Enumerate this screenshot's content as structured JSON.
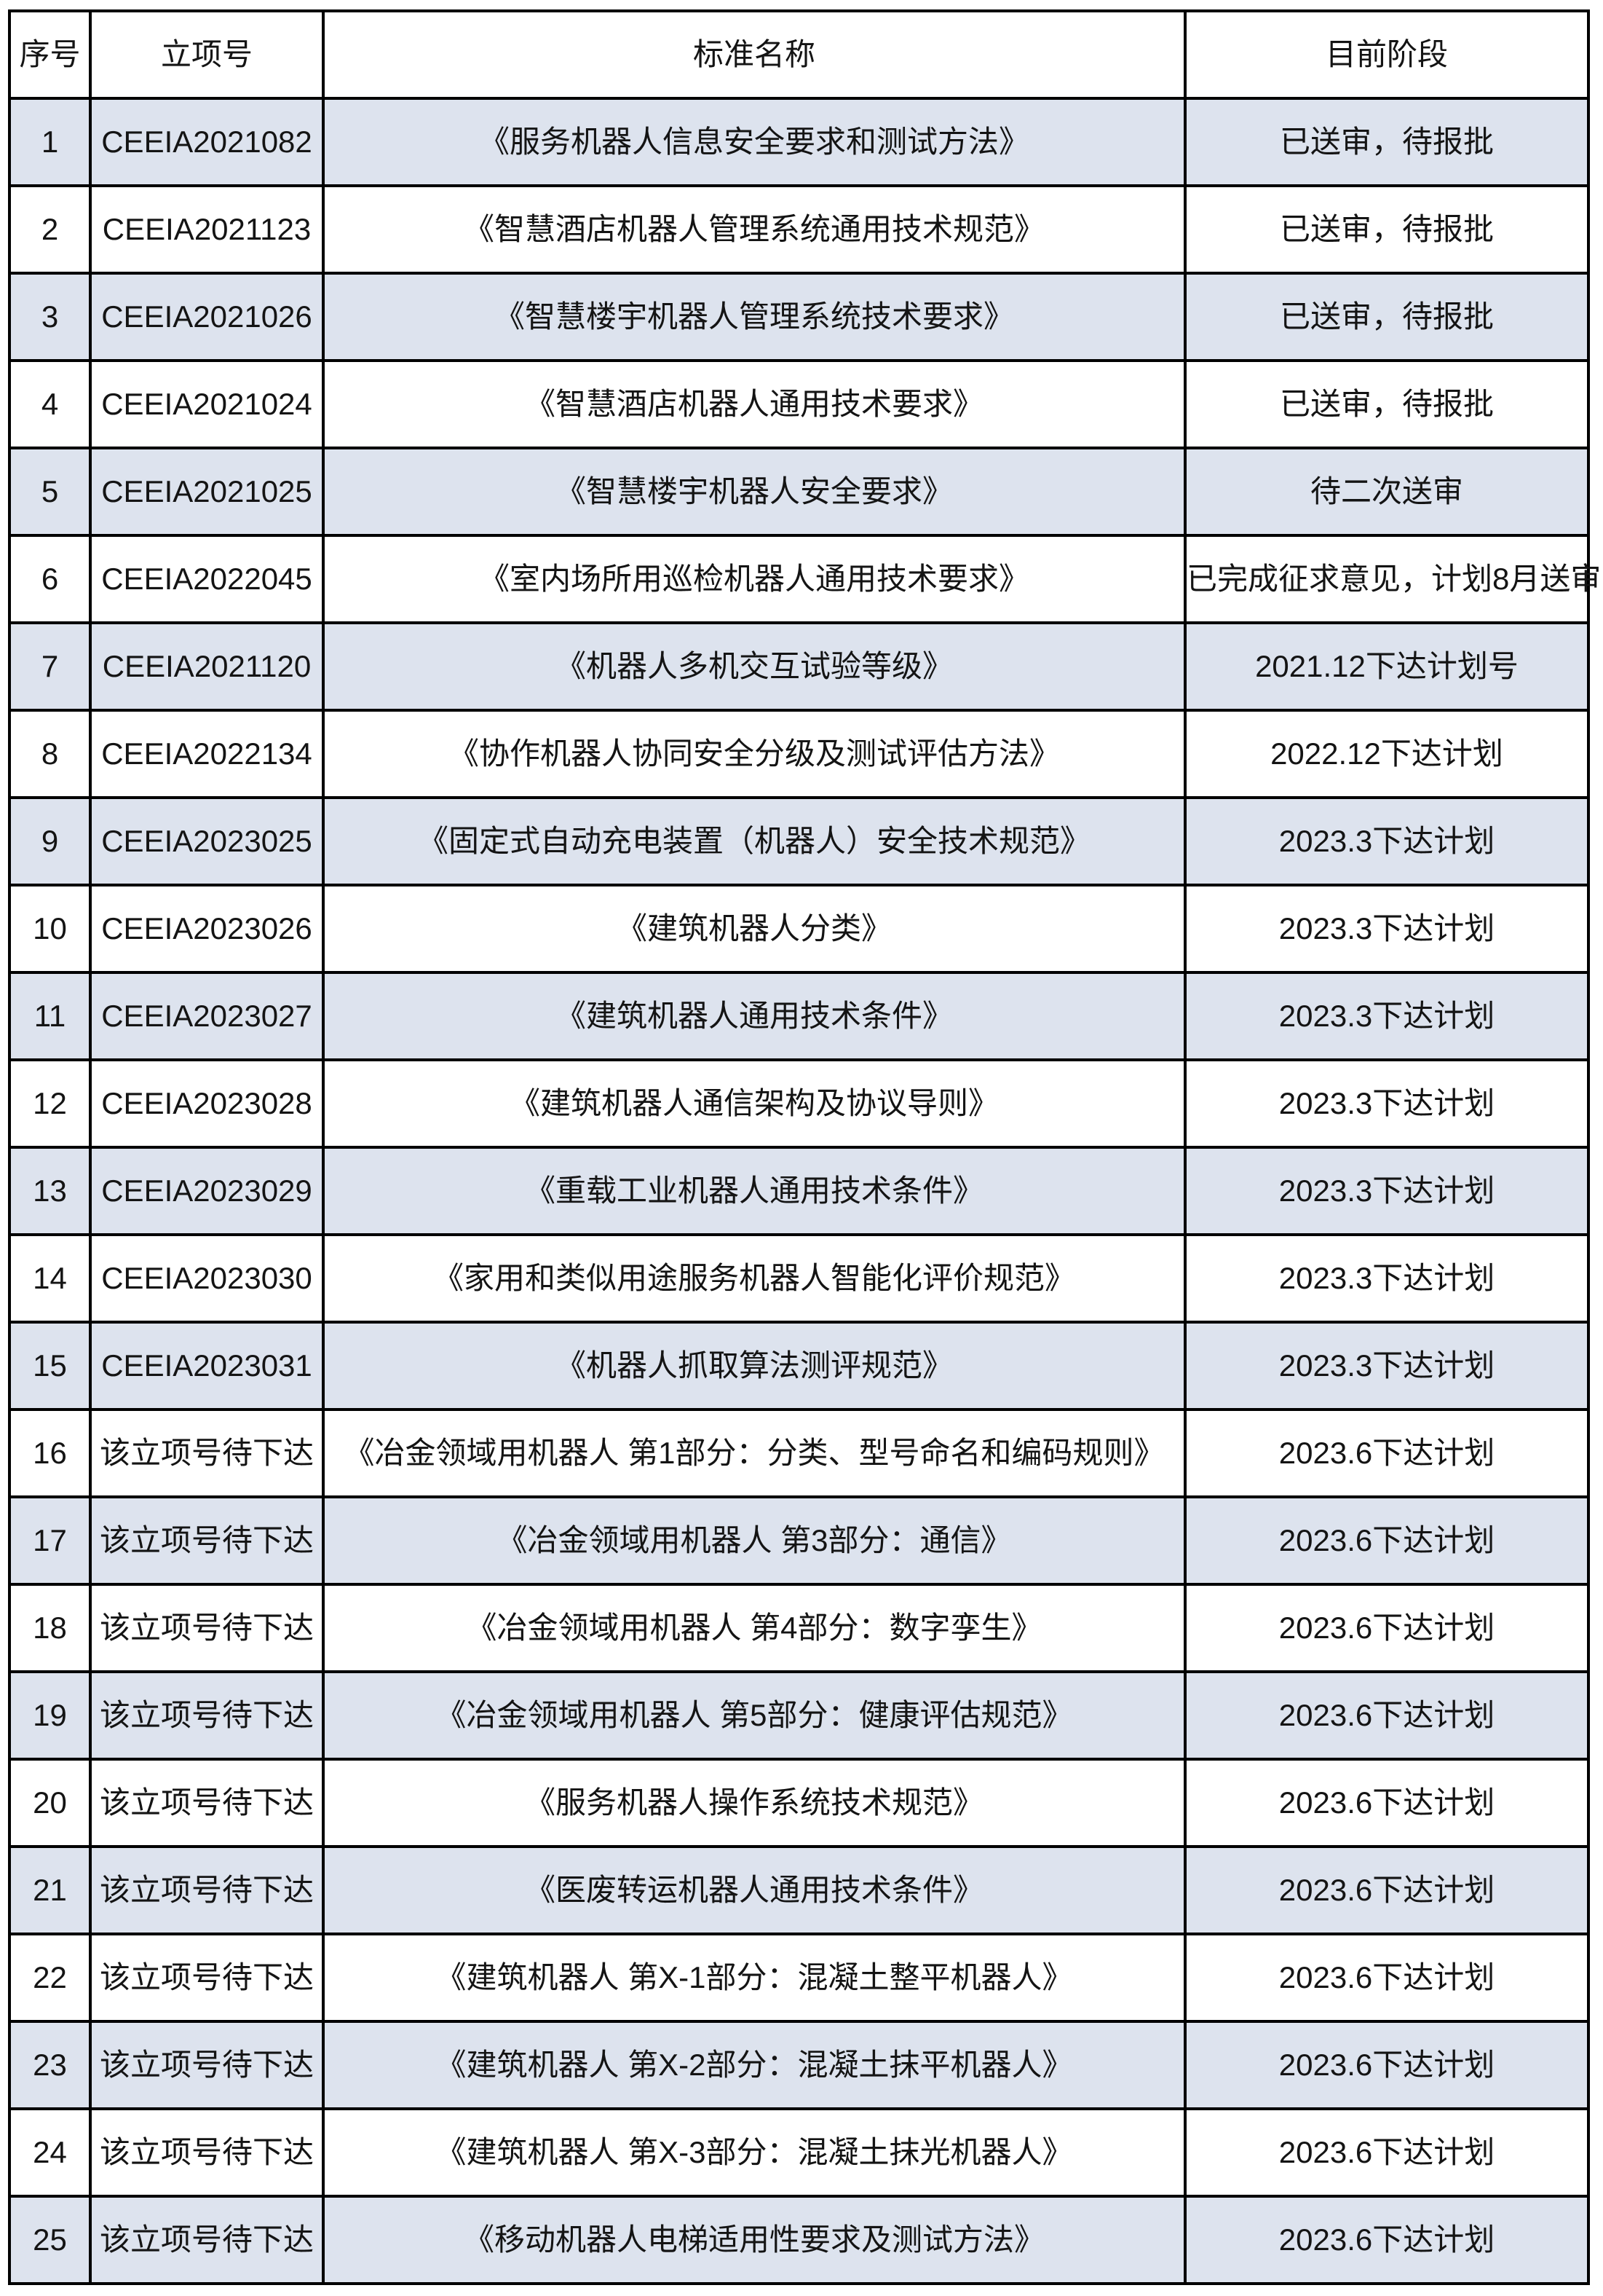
{
  "table": {
    "headers": [
      "序号",
      "立项号",
      "标准名称",
      "目前阶段"
    ],
    "rows": [
      {
        "serial": "1",
        "project_no": "CEEIA2021082",
        "name": "《服务机器人信息安全要求和测试方法》",
        "stage": "已送审，待报批"
      },
      {
        "serial": "2",
        "project_no": "CEEIA2021123",
        "name": "《智慧酒店机器人管理系统通用技术规范》",
        "stage": "已送审，待报批"
      },
      {
        "serial": "3",
        "project_no": "CEEIA2021026",
        "name": "《智慧楼宇机器人管理系统技术要求》",
        "stage": "已送审，待报批"
      },
      {
        "serial": "4",
        "project_no": "CEEIA2021024",
        "name": "《智慧酒店机器人通用技术要求》",
        "stage": "已送审，待报批"
      },
      {
        "serial": "5",
        "project_no": "CEEIA2021025",
        "name": "《智慧楼宇机器人安全要求》",
        "stage": "待二次送审"
      },
      {
        "serial": "6",
        "project_no": "CEEIA2022045",
        "name": "《室内场所用巡检机器人通用技术要求》",
        "stage": "已完成征求意见，计划8月送审"
      },
      {
        "serial": "7",
        "project_no": "CEEIA2021120",
        "name": "《机器人多机交互试验等级》",
        "stage": "2021.12下达计划号"
      },
      {
        "serial": "8",
        "project_no": "CEEIA2022134",
        "name": "《协作机器人协同安全分级及测试评估方法》",
        "stage": "2022.12下达计划"
      },
      {
        "serial": "9",
        "project_no": "CEEIA2023025",
        "name": "《固定式自动充电装置（机器人）安全技术规范》",
        "stage": "2023.3下达计划"
      },
      {
        "serial": "10",
        "project_no": "CEEIA2023026",
        "name": "《建筑机器人分类》",
        "stage": "2023.3下达计划"
      },
      {
        "serial": "11",
        "project_no": "CEEIA2023027",
        "name": "《建筑机器人通用技术条件》",
        "stage": "2023.3下达计划"
      },
      {
        "serial": "12",
        "project_no": "CEEIA2023028",
        "name": "《建筑机器人通信架构及协议导则》",
        "stage": "2023.3下达计划"
      },
      {
        "serial": "13",
        "project_no": "CEEIA2023029",
        "name": "《重载工业机器人通用技术条件》",
        "stage": "2023.3下达计划"
      },
      {
        "serial": "14",
        "project_no": "CEEIA2023030",
        "name": "《家用和类似用途服务机器人智能化评价规范》",
        "stage": "2023.3下达计划"
      },
      {
        "serial": "15",
        "project_no": "CEEIA2023031",
        "name": "《机器人抓取算法测评规范》",
        "stage": "2023.3下达计划"
      },
      {
        "serial": "16",
        "project_no": "该立项号待下达",
        "name": "《冶金领域用机器人 第1部分：分类、型号命名和编码规则》",
        "stage": "2023.6下达计划"
      },
      {
        "serial": "17",
        "project_no": "该立项号待下达",
        "name": "《冶金领域用机器人 第3部分：通信》",
        "stage": "2023.6下达计划"
      },
      {
        "serial": "18",
        "project_no": "该立项号待下达",
        "name": "《冶金领域用机器人 第4部分：数字孪生》",
        "stage": "2023.6下达计划"
      },
      {
        "serial": "19",
        "project_no": "该立项号待下达",
        "name": "《冶金领域用机器人 第5部分：健康评估规范》",
        "stage": "2023.6下达计划"
      },
      {
        "serial": "20",
        "project_no": "该立项号待下达",
        "name": "《服务机器人操作系统技术规范》",
        "stage": "2023.6下达计划"
      },
      {
        "serial": "21",
        "project_no": "该立项号待下达",
        "name": "《医废转运机器人通用技术条件》",
        "stage": "2023.6下达计划"
      },
      {
        "serial": "22",
        "project_no": "该立项号待下达",
        "name": "《建筑机器人 第X-1部分：混凝土整平机器人》",
        "stage": "2023.6下达计划"
      },
      {
        "serial": "23",
        "project_no": "该立项号待下达",
        "name": "《建筑机器人 第X-2部分：混凝土抹平机器人》",
        "stage": "2023.6下达计划"
      },
      {
        "serial": "24",
        "project_no": "该立项号待下达",
        "name": "《建筑机器人 第X-3部分：混凝土抹光机器人》",
        "stage": "2023.6下达计划"
      },
      {
        "serial": "25",
        "project_no": "该立项号待下达",
        "name": "《移动机器人电梯适用性要求及测试方法》",
        "stage": "2023.6下达计划"
      }
    ]
  },
  "colors": {
    "row_alt_background": "#dde3ee",
    "row_background": "#ffffff",
    "border": "#000000",
    "text": "#141414"
  }
}
